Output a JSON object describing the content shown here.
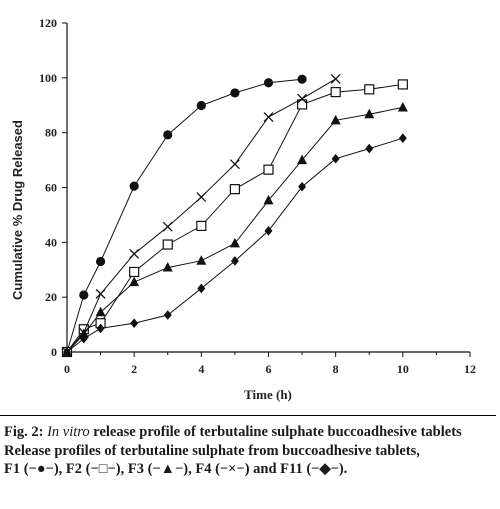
{
  "chart_data": {
    "type": "line",
    "title": "",
    "xlabel": "Time (h)",
    "ylabel": "Cumulative % Drug Released",
    "xlim": [
      0,
      12
    ],
    "ylim": [
      0,
      120
    ],
    "x_ticks": [
      0,
      2,
      4,
      6,
      8,
      10,
      12
    ],
    "y_ticks": [
      0,
      20,
      40,
      60,
      80,
      100,
      120
    ],
    "grid": false,
    "series": [
      {
        "marker": "circle",
        "x": [
          0,
          0.5,
          1,
          2,
          3,
          4,
          5,
          6,
          7
        ],
        "y": [
          0,
          20.8,
          33,
          60.5,
          79.2,
          89.9,
          94.5,
          98.2,
          99.5
        ]
      },
      {
        "marker": "square",
        "x": [
          0,
          0.5,
          1,
          2,
          3,
          4,
          5,
          6,
          7,
          8,
          9,
          10
        ],
        "y": [
          0,
          8.3,
          10.5,
          29.2,
          39.2,
          46,
          59.4,
          66.5,
          90.3,
          94.8,
          95.8,
          97.6
        ]
      },
      {
        "marker": "triangle",
        "x": [
          0,
          0.5,
          1,
          2,
          3,
          4,
          5,
          6,
          7,
          8,
          9,
          10
        ],
        "y": [
          0,
          6.5,
          14.5,
          25.5,
          30.8,
          33.3,
          39.6,
          55.3,
          70,
          84.5,
          86.7,
          89.2
        ]
      },
      {
        "marker": "x",
        "x": [
          0,
          0.5,
          1,
          2,
          3,
          4,
          5,
          6,
          7,
          8
        ],
        "y": [
          0,
          7.1,
          21.2,
          35.8,
          45.7,
          56.5,
          68.5,
          85.7,
          92.4,
          99.6
        ]
      },
      {
        "marker": "diamond",
        "x": [
          0,
          0.5,
          1,
          2,
          3,
          4,
          5,
          6,
          7,
          8,
          9,
          10
        ],
        "y": [
          0,
          4.9,
          8.6,
          10.5,
          13.5,
          23.2,
          33.2,
          44.2,
          60.3,
          70.5,
          74.2,
          78
        ]
      }
    ]
  },
  "caption": {
    "fig_prefix": "Fig. 2:",
    "in_vitro": "In vitro",
    "title_rest": "release profile of terbutaline sulphate buccoadhesive tablets",
    "line2": "Release profiles of terbutaline sulphate from buccoadhesive tablets,",
    "line3": "F1 (−●−), F2 (−□−), F3 (−▲−), F4 (−×−) and F11 (−◆−)."
  }
}
